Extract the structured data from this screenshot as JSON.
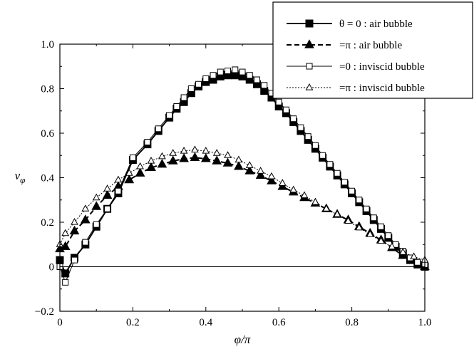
{
  "chart_data": {
    "type": "line",
    "xlabel": "φ/π",
    "ylabel": "v_φ",
    "xlim": [
      0,
      1.0
    ],
    "ylim": [
      -0.2,
      1.0
    ],
    "x_ticks": [
      {
        "v": 0,
        "label": "0"
      },
      {
        "v": 0.2,
        "label": "0.2"
      },
      {
        "v": 0.4,
        "label": "0.4"
      },
      {
        "v": 0.6,
        "label": "0.6"
      },
      {
        "v": 0.8,
        "label": "0.8"
      },
      {
        "v": 1.0,
        "label": "1.0"
      }
    ],
    "y_ticks": [
      {
        "v": -0.2,
        "label": "−0.2"
      },
      {
        "v": 0,
        "label": "0"
      },
      {
        "v": 0.2,
        "label": "0.2"
      },
      {
        "v": 0.4,
        "label": "0.4"
      },
      {
        "v": 0.6,
        "label": "0.6"
      },
      {
        "v": 0.8,
        "label": "0.8"
      },
      {
        "v": 1.0,
        "label": "1.0"
      }
    ],
    "zero_line": true,
    "legend_position": "top-right",
    "series": [
      {
        "name": "θ = 0 : air bubble",
        "line": "solid-thick",
        "marker": "square-filled",
        "x": [
          0.0,
          0.015,
          0.04,
          0.07,
          0.1,
          0.13,
          0.16,
          0.2,
          0.24,
          0.27,
          0.3,
          0.32,
          0.34,
          0.36,
          0.38,
          0.4,
          0.42,
          0.44,
          0.46,
          0.48,
          0.5,
          0.52,
          0.54,
          0.56,
          0.58,
          0.6,
          0.62,
          0.64,
          0.66,
          0.68,
          0.7,
          0.72,
          0.74,
          0.76,
          0.78,
          0.8,
          0.82,
          0.84,
          0.86,
          0.88,
          0.9,
          0.92,
          0.94,
          0.96,
          0.98,
          1.0
        ],
        "y": [
          0.03,
          -0.03,
          0.04,
          0.1,
          0.18,
          0.26,
          0.33,
          0.48,
          0.55,
          0.61,
          0.67,
          0.71,
          0.74,
          0.78,
          0.81,
          0.83,
          0.84,
          0.855,
          0.86,
          0.86,
          0.855,
          0.84,
          0.82,
          0.79,
          0.76,
          0.72,
          0.69,
          0.65,
          0.61,
          0.57,
          0.53,
          0.49,
          0.45,
          0.41,
          0.37,
          0.33,
          0.29,
          0.25,
          0.21,
          0.17,
          0.13,
          0.09,
          0.06,
          0.03,
          0.01,
          0.0
        ]
      },
      {
        "name": "=π : air bubble",
        "line": "dashed-thick",
        "marker": "triangle-filled",
        "x": [
          0.0,
          0.015,
          0.04,
          0.07,
          0.1,
          0.13,
          0.16,
          0.19,
          0.22,
          0.25,
          0.28,
          0.31,
          0.34,
          0.37,
          0.4,
          0.43,
          0.46,
          0.49,
          0.52,
          0.55,
          0.58,
          0.61,
          0.64,
          0.67,
          0.7,
          0.73,
          0.76,
          0.79,
          0.82,
          0.85,
          0.88,
          0.91,
          0.94,
          0.97,
          1.0
        ],
        "y": [
          0.08,
          0.09,
          0.16,
          0.21,
          0.27,
          0.32,
          0.36,
          0.39,
          0.42,
          0.445,
          0.46,
          0.475,
          0.485,
          0.49,
          0.485,
          0.475,
          0.465,
          0.45,
          0.43,
          0.41,
          0.385,
          0.36,
          0.335,
          0.31,
          0.285,
          0.26,
          0.235,
          0.21,
          0.18,
          0.15,
          0.12,
          0.085,
          0.05,
          0.03,
          0.0
        ]
      },
      {
        "name": "=0 : inviscid bubble",
        "line": "solid-thin",
        "marker": "square-open",
        "x": [
          0.0,
          0.015,
          0.04,
          0.07,
          0.1,
          0.13,
          0.16,
          0.2,
          0.24,
          0.27,
          0.3,
          0.32,
          0.34,
          0.36,
          0.38,
          0.4,
          0.42,
          0.44,
          0.46,
          0.48,
          0.5,
          0.52,
          0.54,
          0.56,
          0.58,
          0.6,
          0.62,
          0.64,
          0.66,
          0.68,
          0.7,
          0.72,
          0.74,
          0.76,
          0.78,
          0.8,
          0.82,
          0.84,
          0.86,
          0.88,
          0.9,
          0.92,
          0.94,
          0.96,
          0.98,
          1.0
        ],
        "y": [
          0.0,
          -0.07,
          0.03,
          0.11,
          0.19,
          0.26,
          0.34,
          0.49,
          0.56,
          0.62,
          0.68,
          0.72,
          0.76,
          0.8,
          0.82,
          0.845,
          0.86,
          0.875,
          0.88,
          0.885,
          0.875,
          0.86,
          0.84,
          0.815,
          0.78,
          0.74,
          0.705,
          0.665,
          0.625,
          0.585,
          0.545,
          0.5,
          0.46,
          0.42,
          0.38,
          0.34,
          0.3,
          0.26,
          0.22,
          0.18,
          0.14,
          0.1,
          0.07,
          0.04,
          0.02,
          0.01
        ]
      },
      {
        "name": "=π : inviscid bubble",
        "line": "dotted-thin",
        "marker": "triangle-open",
        "x": [
          0.0,
          0.015,
          0.04,
          0.07,
          0.1,
          0.13,
          0.16,
          0.19,
          0.22,
          0.25,
          0.28,
          0.31,
          0.34,
          0.37,
          0.4,
          0.43,
          0.46,
          0.49,
          0.52,
          0.55,
          0.58,
          0.61,
          0.64,
          0.67,
          0.7,
          0.73,
          0.76,
          0.79,
          0.82,
          0.85,
          0.88,
          0.91,
          0.94,
          0.97,
          1.0
        ],
        "y": [
          0.1,
          0.15,
          0.2,
          0.26,
          0.31,
          0.35,
          0.39,
          0.42,
          0.45,
          0.475,
          0.495,
          0.51,
          0.52,
          0.525,
          0.52,
          0.51,
          0.5,
          0.48,
          0.455,
          0.43,
          0.405,
          0.375,
          0.345,
          0.32,
          0.29,
          0.26,
          0.235,
          0.205,
          0.175,
          0.145,
          0.115,
          0.09,
          0.065,
          0.045,
          0.03
        ]
      }
    ]
  }
}
